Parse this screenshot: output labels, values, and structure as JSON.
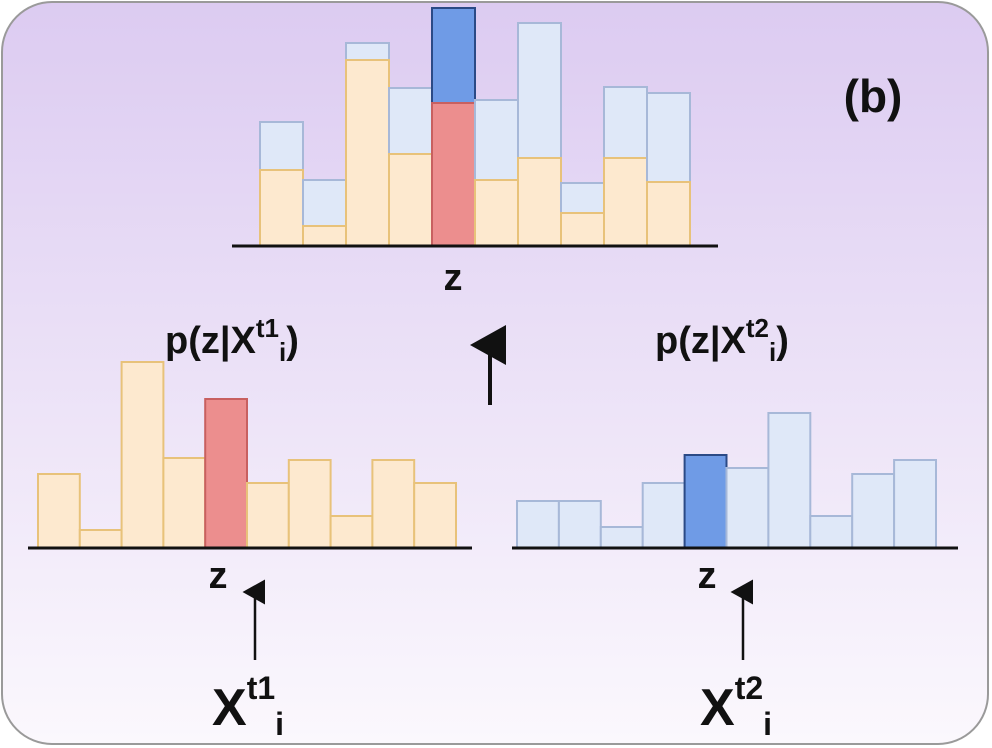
{
  "panel_label": "(b)",
  "combined": {
    "axis_label": "z"
  },
  "left": {
    "distribution": {
      "prefix": "p(z|X",
      "superscript": "t1",
      "subscript": "i",
      "suffix": ")"
    },
    "axis_label": "z",
    "input": {
      "base": "X",
      "superscript": "t1",
      "subscript": "i"
    }
  },
  "right": {
    "distribution": {
      "prefix": "p(z|X",
      "superscript": "t2",
      "subscript": "i",
      "suffix": ")"
    },
    "axis_label": "z",
    "input": {
      "base": "X",
      "superscript": "t2",
      "subscript": "i"
    }
  }
}
